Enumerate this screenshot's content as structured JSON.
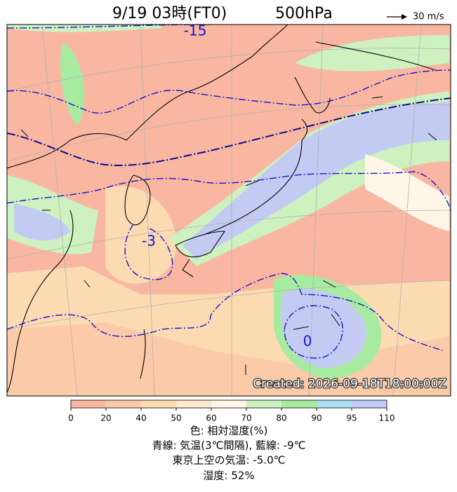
{
  "header": {
    "time": "9/19 03時(FT0)",
    "level": "500hPa",
    "vector_scale": "30 m/s"
  },
  "map": {
    "contour_labels": [
      "-15",
      "-3",
      "0"
    ],
    "created": "Created: 2026-09-18T18:00:00Z"
  },
  "colorbar": {
    "ticks": [
      "0",
      "20",
      "40",
      "50",
      "60",
      "70",
      "80",
      "90",
      "95",
      "110"
    ],
    "colors": [
      "#f9b7a2",
      "#fbcaa8",
      "#fddbb2",
      "#feead0",
      "#fff6e8",
      "#cdf2c0",
      "#a7eba0",
      "#abdff3",
      "#c3cbf3"
    ]
  },
  "caption": {
    "line1": "色: 相対湿度(%)",
    "line2": "青線: 気温(3℃間隔), 藍線: -9℃",
    "line3": "東京上空の気温: -5.0℃",
    "line4": "湿度: 52%"
  }
}
